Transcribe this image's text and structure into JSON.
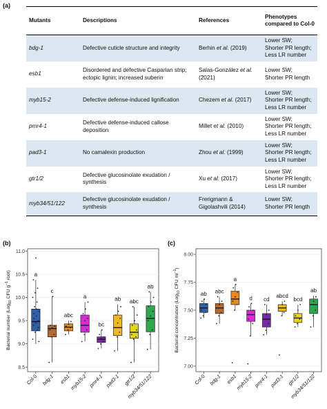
{
  "panel_labels": {
    "a": "(a)",
    "b": "(b)",
    "c": "(c)"
  },
  "table": {
    "headers": [
      "Mutants",
      "Descriptions",
      "References",
      "Phenotypes compared to Col-0"
    ],
    "rows": [
      {
        "mutant": "bdg-1",
        "description": "Defective cuticle structure and integrity",
        "ref_pre": "Berhin ",
        "ref_it": "et al.",
        "ref_post": " (2019)",
        "phenotypes": [
          "Lower SW;",
          "Shorter PR length;",
          "Less LR number"
        ]
      },
      {
        "mutant": "esb1",
        "description": "Disordered and defective Casparian strip; ectopic lignin; increased suberin",
        "ref_pre": "Salas-González ",
        "ref_it": "et al.",
        "ref_post": " (2021)",
        "phenotypes": [
          "Lower SW;",
          "Shorter PR length"
        ]
      },
      {
        "mutant": "myb15-2",
        "description": "Defective defense-induced lignification",
        "ref_pre": "Chezem ",
        "ref_it": "et al.",
        "ref_post": " (2017)",
        "phenotypes": [
          "Lower SW;",
          "Shorter PR length;",
          "Less LR number"
        ]
      },
      {
        "mutant": "pmr4-1",
        "description": "Defective defense-induced callose deposition",
        "ref_pre": "Millet ",
        "ref_it": "et al.",
        "ref_post": " (2010)",
        "phenotypes": [
          "Lower SW;",
          "Shorter PR length;",
          "Less LR number"
        ]
      },
      {
        "mutant": "pad3-1",
        "description": "No camalexin production",
        "ref_pre": "Zhou ",
        "ref_it": "et al.",
        "ref_post": " (1999)",
        "phenotypes": [
          "Lower SW;",
          "Shorter PR length;",
          "Less LR number"
        ]
      },
      {
        "mutant": "gtr1/2",
        "description": "Defective glucosinolate exudation / synthesis",
        "ref_pre": "Xu ",
        "ref_it": "et al.",
        "ref_post": " (2017)",
        "phenotypes": [
          "Lower SW;",
          "Shorter PR length;",
          "Less LR number"
        ]
      },
      {
        "mutant": "myb34/51/122",
        "description": "Defective glucosinolate exudation / synthesis",
        "ref_pre": "Frerigmann & Gigolashvili (2014)",
        "ref_it": "",
        "ref_post": "",
        "phenotypes": [
          "Lower SW;",
          "Shorter PR length"
        ]
      }
    ]
  },
  "chart_data": [
    {
      "type": "box",
      "panel": "b",
      "ylabel_pre": "Bacterial number (Log",
      "ylabel_sub": "10",
      "ylabel_mid": " CFU g",
      "ylabel_sup": "−1",
      "ylabel_post": " root)",
      "ylim": [
        8.4,
        11.05
      ],
      "yticks": [
        "8.5",
        "9.0",
        "9.5",
        "10.0",
        "10.5",
        "11.0"
      ],
      "ytick_values": [
        8.5,
        9.0,
        9.5,
        10.0,
        10.5,
        11.0
      ],
      "categories": [
        "Col-0",
        "bdg-1",
        "esb1",
        "myb15-2",
        "pmr4-1",
        "pad3-1",
        "gtr1/2",
        "myb34/51/122"
      ],
      "colors": [
        "#2e5fa8",
        "#b86a2e",
        "#e58a1f",
        "#d12ed4",
        "#7a2aa8",
        "#f2b81f",
        "#e3d61a",
        "#2ea84f"
      ],
      "letters": [
        "a",
        "c",
        "abc",
        "a",
        "bc",
        "ab",
        "abc",
        "ab"
      ],
      "boxes": [
        {
          "min": 9.0,
          "q1": 9.28,
          "median": 9.48,
          "q3": 9.75,
          "max": 10.38
        },
        {
          "min": 8.6,
          "q1": 9.15,
          "median": 9.33,
          "q3": 9.4,
          "max": 10.02
        },
        {
          "min": 9.2,
          "q1": 9.28,
          "median": 9.36,
          "q3": 9.43,
          "max": 9.5
        },
        {
          "min": 9.05,
          "q1": 9.25,
          "median": 9.4,
          "q3": 9.62,
          "max": 9.9
        },
        {
          "min": 8.9,
          "q1": 9.03,
          "median": 9.1,
          "q3": 9.15,
          "max": 9.3
        },
        {
          "min": 8.85,
          "q1": 9.18,
          "median": 9.35,
          "q3": 9.62,
          "max": 9.85
        },
        {
          "min": 8.6,
          "q1": 9.12,
          "median": 9.25,
          "q3": 9.43,
          "max": 9.8
        },
        {
          "min": 8.88,
          "q1": 9.26,
          "median": 9.55,
          "q3": 9.82,
          "max": 10.12
        }
      ],
      "points": [
        [
          9.1,
          9.25,
          9.3,
          9.4,
          9.45,
          9.5,
          9.55,
          9.6,
          9.7,
          9.8,
          9.9,
          10.0,
          10.1,
          10.2,
          10.38,
          10.85,
          9.35,
          9.65,
          9.75,
          9.05
        ],
        [
          8.6,
          9.15,
          9.2,
          9.3,
          9.35,
          9.38,
          9.4,
          10.02
        ],
        [
          9.2,
          9.3,
          9.35,
          9.38,
          9.42,
          9.48
        ],
        [
          9.05,
          9.2,
          9.3,
          9.4,
          9.5,
          9.55,
          9.65,
          9.75,
          9.9
        ],
        [
          8.9,
          9.0,
          9.05,
          9.1,
          9.12,
          9.15,
          9.2,
          9.3
        ],
        [
          8.85,
          9.15,
          9.25,
          9.35,
          9.45,
          9.55,
          9.62,
          9.7,
          9.8
        ],
        [
          8.6,
          9.1,
          9.15,
          9.2,
          9.25,
          9.3,
          9.4,
          9.5,
          9.62,
          9.8
        ],
        [
          8.88,
          9.2,
          9.3,
          9.5,
          9.6,
          9.7,
          9.8,
          9.9,
          10.0,
          10.12
        ]
      ]
    },
    {
      "type": "box",
      "panel": "c",
      "ylabel_pre": "Bacterial concentration (Log",
      "ylabel_sub": "10",
      "ylabel_mid": " CFU ml",
      "ylabel_sup": "−1",
      "ylabel_post": ")",
      "ylim": [
        6.95,
        8.05
      ],
      "yticks": [
        "7.00",
        "7.25",
        "7.50",
        "7.75",
        "8.00"
      ],
      "ytick_values": [
        7.0,
        7.25,
        7.5,
        7.75,
        8.0
      ],
      "categories": [
        "Col-0",
        "bdg-1",
        "esb1",
        "myb15-2",
        "pmr4-1",
        "pad3-1",
        "gtr1/2",
        "myb34/51/122"
      ],
      "colors": [
        "#2e5fa8",
        "#b86a2e",
        "#e58a1f",
        "#d12ed4",
        "#7a2aa8",
        "#f2b81f",
        "#e3d61a",
        "#2ea84f"
      ],
      "letters": [
        "ab",
        "abc",
        "a",
        "d",
        "cd",
        "abcd",
        "bcd",
        "ab"
      ],
      "boxes": [
        {
          "min": 7.43,
          "q1": 7.48,
          "median": 7.52,
          "q3": 7.56,
          "max": 7.6
        },
        {
          "min": 7.38,
          "q1": 7.47,
          "median": 7.52,
          "q3": 7.56,
          "max": 7.62
        },
        {
          "min": 7.5,
          "q1": 7.55,
          "median": 7.6,
          "q3": 7.67,
          "max": 7.73
        },
        {
          "min": 7.27,
          "q1": 7.4,
          "median": 7.46,
          "q3": 7.5,
          "max": 7.56
        },
        {
          "min": 7.28,
          "q1": 7.35,
          "median": 7.42,
          "q3": 7.47,
          "max": 7.55
        },
        {
          "min": 7.45,
          "q1": 7.49,
          "median": 7.52,
          "q3": 7.55,
          "max": 7.58
        },
        {
          "min": 7.35,
          "q1": 7.39,
          "median": 7.43,
          "q3": 7.47,
          "max": 7.55
        },
        {
          "min": 7.35,
          "q1": 7.47,
          "median": 7.55,
          "q3": 7.6,
          "max": 7.63
        }
      ],
      "points": [
        [
          7.43,
          7.45,
          7.48,
          7.5,
          7.52,
          7.55,
          7.58,
          7.6
        ],
        [
          7.38,
          7.45,
          7.48,
          7.52,
          7.55,
          7.58,
          7.62
        ],
        [
          7.03,
          7.5,
          7.55,
          7.58,
          7.62,
          7.66,
          7.7,
          7.73
        ],
        [
          7.02,
          7.27,
          7.38,
          7.42,
          7.46,
          7.5,
          7.53,
          7.56
        ],
        [
          7.28,
          7.32,
          7.38,
          7.42,
          7.46,
          7.5,
          7.55
        ],
        [
          7.1,
          7.45,
          7.48,
          7.52,
          7.55,
          7.58
        ],
        [
          7.35,
          7.38,
          7.42,
          7.45,
          7.5,
          7.55
        ],
        [
          7.35,
          7.45,
          7.5,
          7.55,
          7.58,
          7.62
        ]
      ]
    }
  ]
}
